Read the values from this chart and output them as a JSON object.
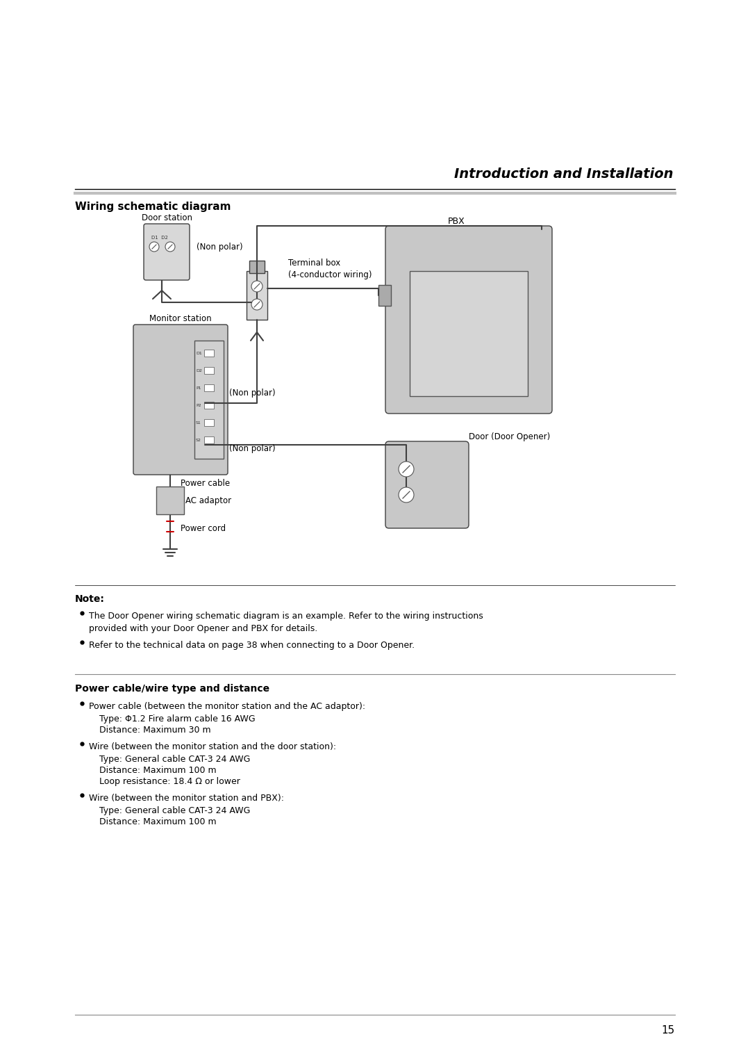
{
  "title": "Introduction and Installation",
  "section1_title": "Wiring schematic diagram",
  "note_title": "Note:",
  "note_bullets": [
    "The Door Opener wiring schematic diagram is an example. Refer to the wiring instructions\nprovided with your Door Opener and PBX for details.",
    "Refer to the technical data on page 38 when connecting to a Door Opener."
  ],
  "section2_title": "Power cable/wire type and distance",
  "section2_bullets": [
    {
      "header": "Power cable (between the monitor station and the AC adaptor):",
      "lines": [
        "Type: Φ1.2 Fire alarm cable 16 AWG",
        "Distance: Maximum 30 m"
      ]
    },
    {
      "header": "Wire (between the monitor station and the door station):",
      "lines": [
        "Type: General cable CAT-3 24 AWG",
        "Distance: Maximum 100 m",
        "Loop resistance: 18.4 Ω or lower"
      ]
    },
    {
      "header": "Wire (between the monitor station and PBX):",
      "lines": [
        "Type: General cable CAT-3 24 AWG",
        "Distance: Maximum 100 m"
      ]
    }
  ],
  "page_number": "15",
  "bg_color": "#ffffff",
  "text_color": "#000000",
  "gray_color": "#c0c0c0",
  "light_gray": "#d0d0d0",
  "dark_gray": "#606060"
}
